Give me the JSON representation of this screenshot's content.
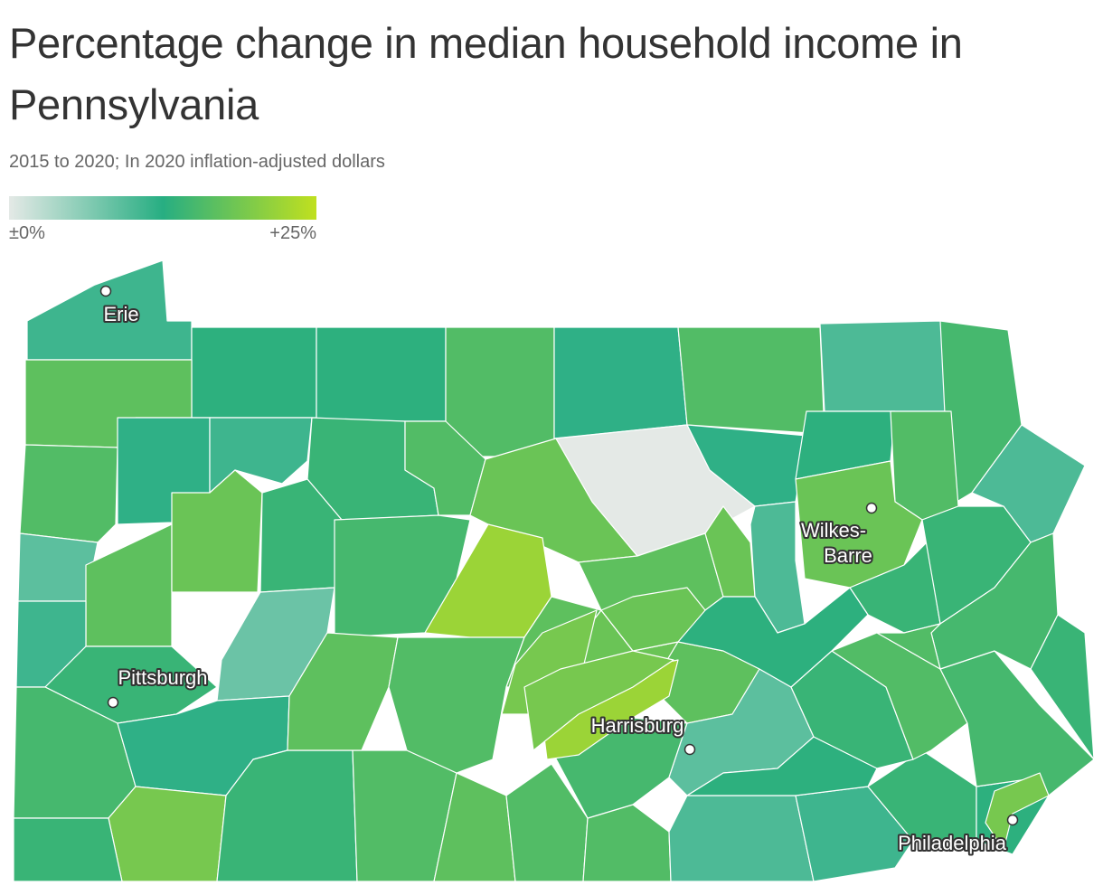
{
  "title": "Percentage change in median household income in Pennsylvania",
  "subtitle": "2015 to 2020; In 2020 inflation-adjusted dollars",
  "legend": {
    "min_label": "±0%",
    "max_label": "+25%",
    "min_value": 0,
    "max_value": 25,
    "colors": [
      "#e4e9e6",
      "#27ae82",
      "#c0e01f"
    ]
  },
  "map": {
    "region": "Pennsylvania",
    "units": "percent change",
    "cities": [
      {
        "name": "Erie"
      },
      {
        "name": "Pittsburgh"
      },
      {
        "name": "Wilkes-Barre",
        "lines": [
          "Wilkes-",
          "Barre"
        ]
      },
      {
        "name": "Harrisburg"
      },
      {
        "name": "Philadelphia"
      }
    ],
    "county_values": [
      11,
      13,
      13,
      16,
      12,
      16,
      10,
      15,
      17,
      16,
      12,
      11,
      14,
      16,
      18,
      0,
      12,
      13,
      16,
      10,
      9,
      17,
      18,
      14,
      15,
      8,
      11,
      14,
      15,
      12,
      19,
      14,
      14,
      16,
      17,
      16,
      16,
      10,
      11,
      14,
      13,
      17,
      22,
      16,
      17,
      18,
      17,
      15,
      9,
      13,
      14,
      16,
      15,
      17,
      18,
      10,
      18,
      14,
      14,
      15,
      13,
      16,
      14,
      18,
      19,
      22,
      19,
      19
    ]
  }
}
